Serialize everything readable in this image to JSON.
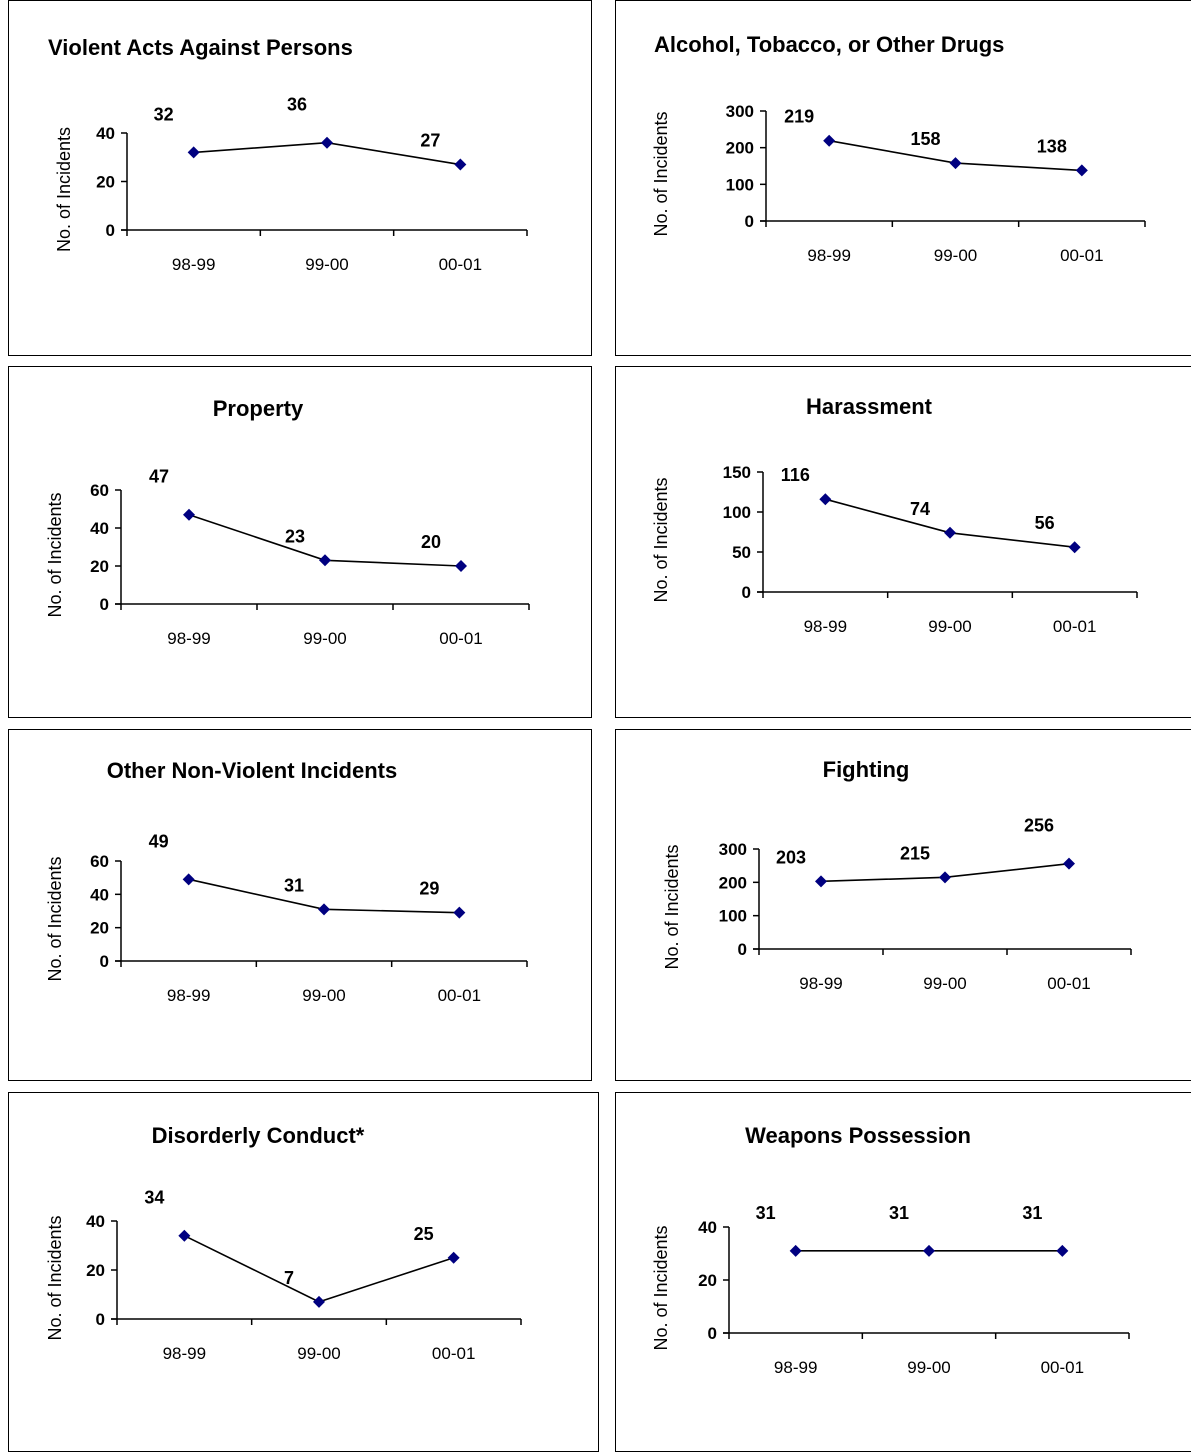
{
  "style": {
    "marker_color": "#000080",
    "line_color": "#000000",
    "axis_color": "#000000"
  },
  "chart_data": [
    {
      "type": "line",
      "title": "Violent Acts Against Persons",
      "ylabel": "No. of Incidents",
      "categories": [
        "98-99",
        "99-00",
        "00-01"
      ],
      "values": [
        32,
        36,
        27
      ],
      "ylim": [
        0,
        40
      ],
      "yticks": [
        0,
        20,
        40
      ],
      "grid": false,
      "legend": "none"
    },
    {
      "type": "line",
      "title": "Alcohol, Tobacco, or Other Drugs",
      "ylabel": "No. of Incidents",
      "categories": [
        "98-99",
        "99-00",
        "00-01"
      ],
      "values": [
        219,
        158,
        138
      ],
      "ylim": [
        0,
        300
      ],
      "yticks": [
        0,
        100,
        200,
        300
      ],
      "grid": false,
      "legend": "none"
    },
    {
      "type": "line",
      "title": "Property",
      "ylabel": "No. of Incidents",
      "categories": [
        "98-99",
        "99-00",
        "00-01"
      ],
      "values": [
        47,
        23,
        20
      ],
      "ylim": [
        0,
        60
      ],
      "yticks": [
        0,
        20,
        40,
        60
      ],
      "grid": false,
      "legend": "none"
    },
    {
      "type": "line",
      "title": "Harassment",
      "ylabel": "No. of Incidents",
      "categories": [
        "98-99",
        "99-00",
        "00-01"
      ],
      "values": [
        116,
        74,
        56
      ],
      "ylim": [
        0,
        150
      ],
      "yticks": [
        0,
        50,
        100,
        150
      ],
      "grid": false,
      "legend": "none"
    },
    {
      "type": "line",
      "title": "Other Non-Violent Incidents",
      "ylabel": "No. of Incidents",
      "categories": [
        "98-99",
        "99-00",
        "00-01"
      ],
      "values": [
        49,
        31,
        29
      ],
      "ylim": [
        0,
        60
      ],
      "yticks": [
        0,
        20,
        40,
        60
      ],
      "grid": false,
      "legend": "none"
    },
    {
      "type": "line",
      "title": "Fighting",
      "ylabel": "No. of Incidents",
      "categories": [
        "98-99",
        "99-00",
        "00-01"
      ],
      "values": [
        203,
        215,
        256
      ],
      "ylim": [
        0,
        300
      ],
      "yticks": [
        0,
        100,
        200,
        300
      ],
      "grid": false,
      "legend": "none"
    },
    {
      "type": "line",
      "title": "Disorderly Conduct*",
      "ylabel": "No. of Incidents",
      "categories": [
        "98-99",
        "99-00",
        "00-01"
      ],
      "values": [
        34,
        7,
        25
      ],
      "ylim": [
        0,
        40
      ],
      "yticks": [
        0,
        20,
        40
      ],
      "grid": false,
      "legend": "none"
    },
    {
      "type": "line",
      "title": "Weapons Possession",
      "ylabel": "No. of Incidents",
      "categories": [
        "98-99",
        "99-00",
        "00-01"
      ],
      "values": [
        31,
        31,
        31
      ],
      "ylim": [
        0,
        40
      ],
      "yticks": [
        0,
        20,
        40
      ],
      "grid": false,
      "legend": "none"
    }
  ]
}
